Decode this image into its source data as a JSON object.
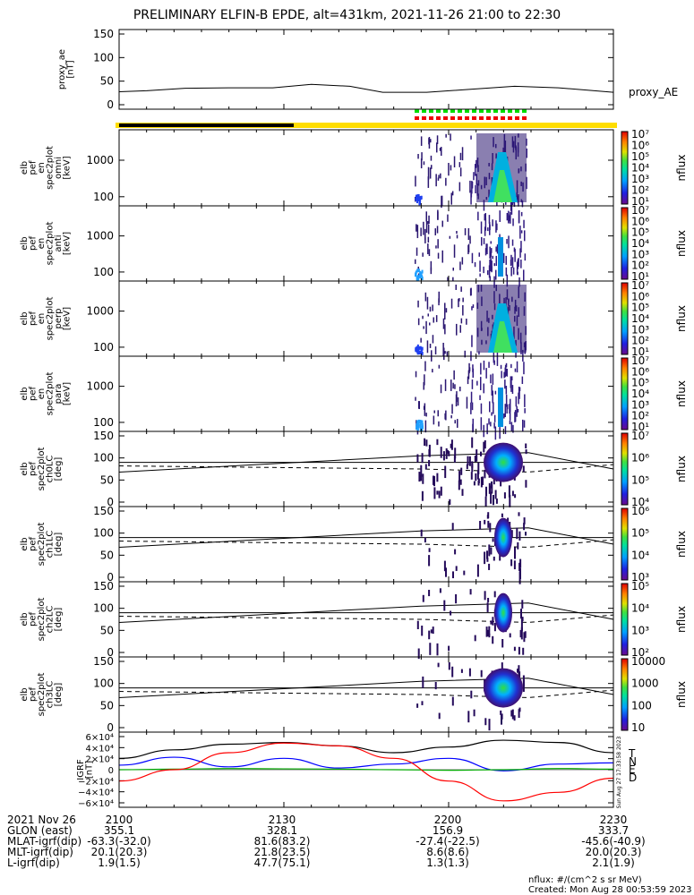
{
  "title": "PRELIMINARY ELFIN-B EPDE, alt=431km, 2021-11-26 21:00 to 22:30",
  "colors": {
    "bar_black": "#000000",
    "bar_yellow": "#ffdd00",
    "qual_green": "#00dd00",
    "qual_red": "#ee0000",
    "grf_t": "#000000",
    "grf_n": "#0000ff",
    "grf_e": "#00aa00",
    "grf_d": "#ff0000"
  },
  "panels": [
    {
      "id": "proxy_ae",
      "ylabel": [
        "proxy_ae",
        "[nT]"
      ],
      "yticks": [
        "150",
        "100",
        "50",
        "0"
      ],
      "right_label": "proxy_AE"
    },
    {
      "id": "omni",
      "ylabel": [
        "elb",
        "pef",
        "en",
        "spec2plot",
        "omni",
        "[keV]"
      ],
      "yticks": [
        "1000",
        "100"
      ],
      "cb_ticks": [
        "10⁷",
        "10⁶",
        "10⁵",
        "10⁴",
        "10³",
        "10²",
        "10¹"
      ],
      "cb_label": "nflux"
    },
    {
      "id": "anti",
      "ylabel": [
        "elb",
        "pef",
        "en",
        "spec2plot",
        "anti",
        "[keV]"
      ],
      "yticks": [
        "1000",
        "100"
      ],
      "cb_ticks": [
        "10⁷",
        "10⁶",
        "10⁵",
        "10⁴",
        "10³",
        "10²",
        "10¹"
      ],
      "cb_label": "nflux"
    },
    {
      "id": "perp",
      "ylabel": [
        "elb",
        "pef",
        "en",
        "spec2plot",
        "perp",
        "[keV]"
      ],
      "yticks": [
        "1000",
        "100"
      ],
      "cb_ticks": [
        "10⁷",
        "10⁶",
        "10⁵",
        "10⁴",
        "10³",
        "10²",
        "10¹"
      ],
      "cb_label": "nflux"
    },
    {
      "id": "para",
      "ylabel": [
        "elb",
        "pef",
        "en",
        "spec2plot",
        "para",
        "[keV]"
      ],
      "yticks": [
        "1000",
        "100"
      ],
      "cb_ticks": [
        "10⁷",
        "10⁶",
        "10⁵",
        "10⁴",
        "10³",
        "10²",
        "10¹"
      ],
      "cb_label": "nflux"
    },
    {
      "id": "ch0LC",
      "ylabel": [
        "elb",
        "pef",
        "spec2plot",
        "ch0LC",
        "[deg]"
      ],
      "yticks": [
        "150",
        "100",
        "50",
        "0"
      ],
      "cb_ticks": [
        "10⁷",
        "10⁶",
        "10⁵",
        "10⁴"
      ],
      "cb_label": "nflux"
    },
    {
      "id": "ch1LC",
      "ylabel": [
        "elb",
        "pef",
        "spec2plot",
        "ch1LC",
        "[deg]"
      ],
      "yticks": [
        "150",
        "100",
        "50",
        "0"
      ],
      "cb_ticks": [
        "10⁶",
        "10⁵",
        "10⁴",
        "10³"
      ],
      "cb_label": "nflux"
    },
    {
      "id": "ch2LC",
      "ylabel": [
        "elb",
        "pef",
        "spec2plot",
        "ch2LC",
        "[deg]"
      ],
      "yticks": [
        "150",
        "100",
        "50",
        "0"
      ],
      "cb_ticks": [
        "10⁵",
        "10⁴",
        "10³",
        "10²"
      ],
      "cb_label": "nflux"
    },
    {
      "id": "ch3LC",
      "ylabel": [
        "elb",
        "pef",
        "spec2plot",
        "ch3LC",
        "[deg]"
      ],
      "yticks": [
        "150",
        "100",
        "50",
        "0"
      ],
      "cb_ticks": [
        "10000",
        "1000",
        "100",
        "10"
      ],
      "cb_label": "nflux"
    },
    {
      "id": "grf",
      "ylabel": [
        "IGRF",
        "[nT]"
      ],
      "yticks": [
        "6×10⁴",
        "4×10⁴",
        "2×10⁴",
        "0",
        "−2×10⁴",
        "−4×10⁴",
        "−6×10⁴"
      ],
      "legend": [
        "T",
        "N",
        "E",
        "D"
      ],
      "stamp": "Sun Aug 27 17:33:58 2023"
    }
  ],
  "chart_data": {
    "type": "line",
    "x_range": [
      "2021-11-26 21:00",
      "2021-11-26 22:30"
    ],
    "xtick_labels": [
      "2100",
      "2130",
      "2200",
      "2230"
    ],
    "proxy_ae": {
      "name": "proxy_AE",
      "ylim": [
        0,
        160
      ],
      "x_min": [
        0,
        5,
        12,
        20,
        28,
        35,
        42,
        48,
        56,
        64,
        72,
        80,
        90
      ],
      "values": [
        35,
        37,
        42,
        43,
        43,
        50,
        46,
        34,
        34,
        40,
        46,
        43,
        34
      ]
    },
    "spectrogram_note": "electron energy flux spectra 100-1000+ keV",
    "igrf": {
      "ylim": [
        -60000,
        60000
      ],
      "x_min": [
        0,
        10,
        20,
        30,
        40,
        50,
        60,
        70,
        80,
        90
      ],
      "series": [
        {
          "name": "T",
          "values": [
            20000,
            35000,
            45000,
            48000,
            42000,
            30000,
            40000,
            52000,
            48000,
            30000
          ]
        },
        {
          "name": "N",
          "values": [
            8000,
            22000,
            5000,
            20000,
            3000,
            10000,
            20000,
            -2000,
            10000,
            12000
          ]
        },
        {
          "name": "E",
          "values": [
            0,
            1000,
            2000,
            1500,
            1000,
            0,
            -1000,
            0,
            2000,
            1000
          ]
        },
        {
          "name": "D",
          "values": [
            -20000,
            0,
            30000,
            47000,
            42000,
            20000,
            -20000,
            -55000,
            -40000,
            -15000
          ]
        }
      ]
    }
  },
  "footer": {
    "rows": [
      {
        "label": "2021 Nov 26",
        "values": [
          "2100",
          "2130",
          "2200",
          "2230"
        ]
      },
      {
        "label": "GLON (east)",
        "values": [
          "355.1",
          "328.1",
          "156.9",
          "333.7"
        ]
      },
      {
        "label": "MLAT-igrf(dip)",
        "values": [
          "-63.3(-32.0)",
          "81.6(83.2)",
          "-27.4(-22.5)",
          "-45.6(-40.9)"
        ]
      },
      {
        "label": "MLT-igrf(dip)",
        "values": [
          "20.1(20.3)",
          "21.8(23.5)",
          "8.6(8.6)",
          "20.0(20.3)"
        ]
      },
      {
        "label": "L-igrf(dip)",
        "values": [
          "1.9(1.5)",
          "47.7(75.1)",
          "1.3(1.3)",
          "2.1(1.9)"
        ]
      }
    ],
    "units_note": "nflux: #/(cm^2 s sr MeV)",
    "created": "Created: Mon Aug 28 00:53:59 2023"
  }
}
